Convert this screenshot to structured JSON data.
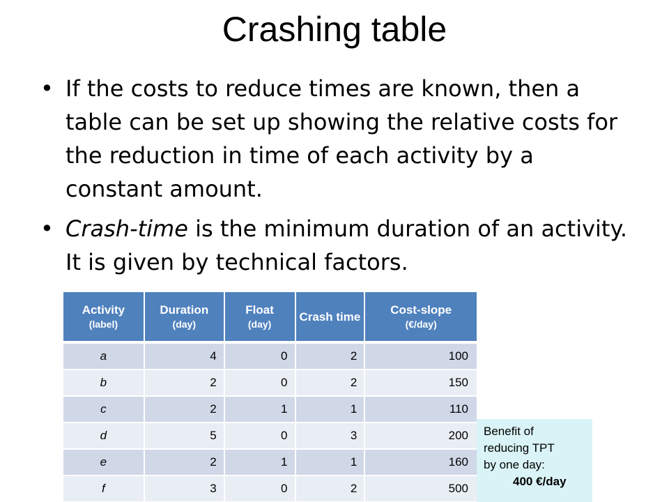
{
  "slide": {
    "title": "Crashing table"
  },
  "bullets": [
    {
      "marker": "•",
      "text": "If the costs to reduce times are known, then a table can be set up showing the relative costs for the reduction in time of each activity by a constant amount."
    },
    {
      "marker": "•",
      "emphasis": "Crash-time",
      "rest": " is the minimum duration of an activity. It is given by technical factors."
    }
  ],
  "table": {
    "headers": [
      {
        "main": "Activity",
        "sub": "(label)"
      },
      {
        "main": "Duration",
        "sub": "(day)"
      },
      {
        "main": "Float",
        "sub": "(day)"
      },
      {
        "main": "Crash time",
        "sub": ""
      },
      {
        "main": "Cost-slope",
        "sub": "(€/day)"
      }
    ],
    "rows": [
      {
        "label": "a",
        "duration": "4",
        "float": "0",
        "crash": "2",
        "cost": "100"
      },
      {
        "label": "b",
        "duration": "2",
        "float": "0",
        "crash": "2",
        "cost": "150"
      },
      {
        "label": "c",
        "duration": "2",
        "float": "1",
        "crash": "1",
        "cost": "110"
      },
      {
        "label": "d",
        "duration": "5",
        "float": "0",
        "crash": "3",
        "cost": "200"
      },
      {
        "label": "e",
        "duration": "2",
        "float": "1",
        "crash": "1",
        "cost": "160"
      },
      {
        "label": "f",
        "duration": "3",
        "float": "0",
        "crash": "2",
        "cost": "500"
      }
    ]
  },
  "note": {
    "lines": [
      "Benefit of",
      "reducing TPT",
      "by one day:"
    ],
    "value": "400 €/day"
  },
  "colors": {
    "header_bg": "#4f81bd",
    "row_odd_bg": "#d0d8e8",
    "row_even_bg": "#e9edf4",
    "note_bg": "#d9f3f6"
  }
}
